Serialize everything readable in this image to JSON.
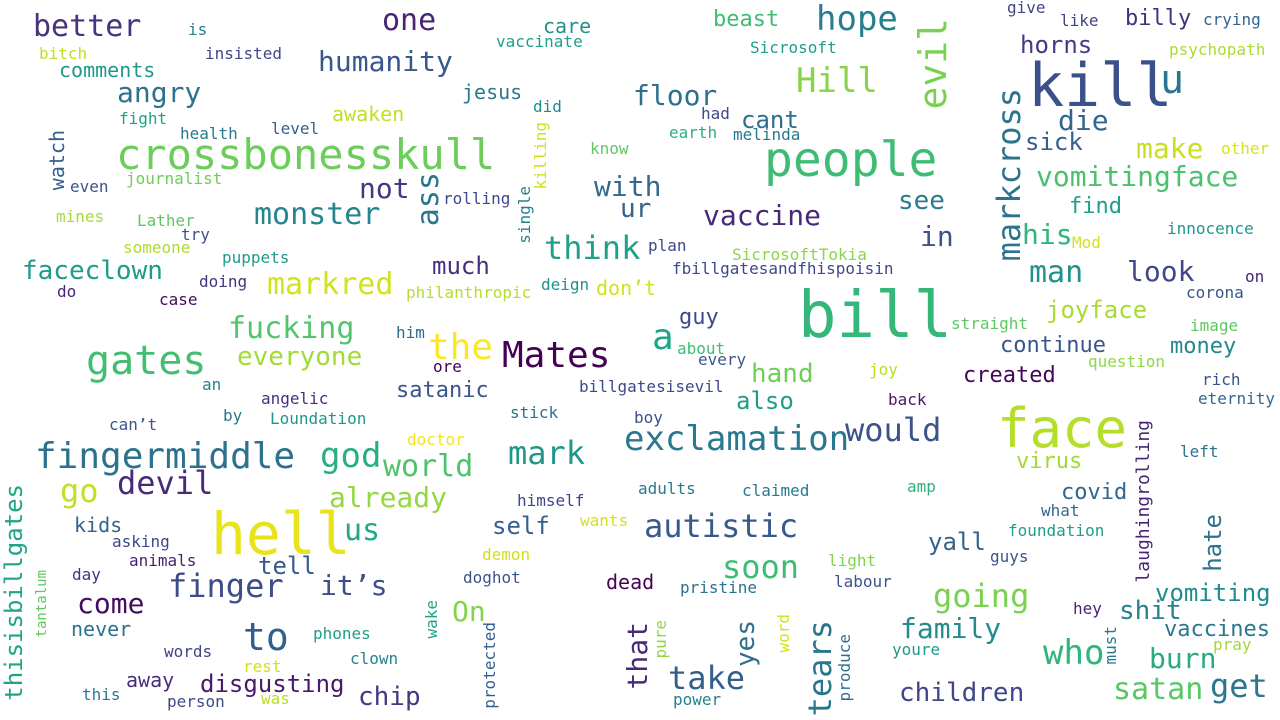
{
  "words": [
    {
      "text": "bill",
      "color": "#35b779"
    },
    {
      "text": "kill",
      "color": "#3b518b"
    },
    {
      "text": "hell",
      "color": "#e8e419"
    },
    {
      "text": "face",
      "color": "#b5de2b"
    },
    {
      "text": "crossbonesskull",
      "color": "#6ccd5a"
    },
    {
      "text": "people",
      "color": "#3fbc73"
    },
    {
      "text": "gates",
      "color": "#42be71"
    },
    {
      "text": "fingermiddle",
      "color": "#2c728e"
    },
    {
      "text": "exclamation",
      "color": "#2a788e"
    },
    {
      "text": "Mates",
      "color": "#440154"
    },
    {
      "text": "evil",
      "color": "#7ad151"
    },
    {
      "text": "markcross",
      "color": "#2c738e"
    },
    {
      "text": "hope",
      "color": "#277f8e"
    },
    {
      "text": "Hill",
      "color": "#86d549"
    },
    {
      "text": "vomitingface",
      "color": "#4ac16d"
    },
    {
      "text": "monster",
      "color": "#25858e"
    },
    {
      "text": "markred",
      "color": "#d2e21b"
    },
    {
      "text": "humanity",
      "color": "#38588c"
    },
    {
      "text": "better",
      "color": "#46327e"
    },
    {
      "text": "one",
      "color": "#482475"
    },
    {
      "text": "angry",
      "color": "#2c718e"
    },
    {
      "text": "floor",
      "color": "#2d708e"
    },
    {
      "text": "cant",
      "color": "#2e6d8e"
    },
    {
      "text": "die",
      "color": "#31678e"
    },
    {
      "text": "make",
      "color": "#c8e020"
    },
    {
      "text": "sick",
      "color": "#355f8d"
    },
    {
      "text": "u",
      "color": "#2a768e"
    },
    {
      "text": "ass",
      "color": "#2b758e"
    },
    {
      "text": "not",
      "color": "#453781"
    },
    {
      "text": "with",
      "color": "#306a8e"
    },
    {
      "text": "ur",
      "color": "#33638d"
    },
    {
      "text": "vaccine",
      "color": "#482878"
    },
    {
      "text": "see",
      "color": "#297b8e"
    },
    {
      "text": "in",
      "color": "#3b528b"
    },
    {
      "text": "think",
      "color": "#1fa088"
    },
    {
      "text": "his",
      "color": "#31b57b"
    },
    {
      "text": "man",
      "color": "#21918c"
    },
    {
      "text": "look",
      "color": "#404688"
    },
    {
      "text": "faceclown",
      "color": "#1e9b8a"
    },
    {
      "text": "much",
      "color": "#472f7d"
    },
    {
      "text": "fucking",
      "color": "#52c569"
    },
    {
      "text": "the",
      "color": "#fde725"
    },
    {
      "text": "a",
      "color": "#20a486"
    },
    {
      "text": "guy",
      "color": "#3e4989"
    },
    {
      "text": "joyface",
      "color": "#a8db34"
    },
    {
      "text": "everyone",
      "color": "#a2da37"
    },
    {
      "text": "continue",
      "color": "#39558c"
    },
    {
      "text": "money",
      "color": "#24878e"
    },
    {
      "text": "created",
      "color": "#450559"
    },
    {
      "text": "hand",
      "color": "#6ece58"
    },
    {
      "text": "also",
      "color": "#1e9c89"
    },
    {
      "text": "satanic",
      "color": "#3a548c"
    },
    {
      "text": "would",
      "color": "#3b528b"
    },
    {
      "text": "god",
      "color": "#29af7f"
    },
    {
      "text": "world",
      "color": "#4ec36b"
    },
    {
      "text": "mark",
      "color": "#1f978b"
    },
    {
      "text": "devil",
      "color": "#472a7a"
    },
    {
      "text": "go",
      "color": "#c2df23"
    },
    {
      "text": "already",
      "color": "#93d741"
    },
    {
      "text": "autistic",
      "color": "#38598c"
    },
    {
      "text": "virus",
      "color": "#a0da39"
    },
    {
      "text": "covid",
      "color": "#31668e"
    },
    {
      "text": "us",
      "color": "#22a884"
    },
    {
      "text": "self",
      "color": "#34618d"
    },
    {
      "text": "yall",
      "color": "#33638d"
    },
    {
      "text": "finger",
      "color": "#3d4d8a"
    },
    {
      "text": "it’s",
      "color": "#3d4e8a"
    },
    {
      "text": "soon",
      "color": "#3dbc74"
    },
    {
      "text": "going",
      "color": "#7ad151"
    },
    {
      "text": "tell",
      "color": "#375a8c"
    },
    {
      "text": "come",
      "color": "#460b5e"
    },
    {
      "text": "to",
      "color": "#345e8d"
    },
    {
      "text": "On",
      "color": "#84d44b"
    },
    {
      "text": "family",
      "color": "#228c8d"
    },
    {
      "text": "who",
      "color": "#2fb47c"
    },
    {
      "text": "vomiting",
      "color": "#228b8d"
    },
    {
      "text": "shit",
      "color": "#26828e"
    },
    {
      "text": "vaccines",
      "color": "#2a788e"
    },
    {
      "text": "burn",
      "color": "#25ac82"
    },
    {
      "text": "take",
      "color": "#355e8d"
    },
    {
      "text": "children",
      "color": "#3f4788"
    },
    {
      "text": "satan",
      "color": "#58c765"
    },
    {
      "text": "get",
      "color": "#2a778e"
    },
    {
      "text": "disgusting",
      "color": "#481a6c"
    },
    {
      "text": "chip",
      "color": "#443983"
    },
    {
      "text": "that",
      "color": "#482878"
    },
    {
      "text": "yes",
      "color": "#2e6e8e"
    },
    {
      "text": "tears",
      "color": "#2a768e"
    },
    {
      "text": "hate",
      "color": "#2c738e"
    },
    {
      "text": "laughingrolling",
      "color": "#482475"
    },
    {
      "text": "thisisbillgates",
      "color": "#20a386"
    },
    {
      "text": "markcross",
      "color": "#2c738e"
    },
    {
      "text": "find",
      "color": "#1f9e89"
    },
    {
      "text": "horns",
      "color": "#443a83"
    },
    {
      "text": "billy",
      "color": "#46307e"
    },
    {
      "text": "beast",
      "color": "#3dbc74"
    },
    {
      "text": "care",
      "color": "#21918c"
    },
    {
      "text": "vaccinate",
      "color": "#1f9f88"
    },
    {
      "text": "jesus",
      "color": "#2a788e"
    },
    {
      "text": "awaken",
      "color": "#c0df25"
    },
    {
      "text": "comments",
      "color": "#1f988b"
    },
    {
      "text": "insisted",
      "color": "#3f4889"
    },
    {
      "text": "bitch",
      "color": "#bddf26"
    },
    {
      "text": "is",
      "color": "#26818e"
    },
    {
      "text": "Sicrosoft",
      "color": "#1f9e89"
    },
    {
      "text": "like",
      "color": "#414487"
    },
    {
      "text": "give",
      "color": "#414487"
    },
    {
      "text": "crying",
      "color": "#33638d"
    },
    {
      "text": "psychopath",
      "color": "#addc30"
    },
    {
      "text": "other",
      "color": "#d8e219"
    },
    {
      "text": "had",
      "color": "#3e4989"
    },
    {
      "text": "did",
      "color": "#23898e"
    },
    {
      "text": "earth",
      "color": "#2ab07f"
    },
    {
      "text": "melinda",
      "color": "#2a788e"
    },
    {
      "text": "know",
      "color": "#5ec962"
    },
    {
      "text": "killing",
      "color": "#d0e11c"
    },
    {
      "text": "single",
      "color": "#277f8e"
    },
    {
      "text": "rolling",
      "color": "#3e4989"
    },
    {
      "text": "fight",
      "color": "#1fa188"
    },
    {
      "text": "health",
      "color": "#2a788e"
    },
    {
      "text": "level",
      "color": "#355f8d"
    },
    {
      "text": "watch",
      "color": "#355e8d"
    },
    {
      "text": "even",
      "color": "#3a548c"
    },
    {
      "text": "journalist",
      "color": "#6ece58"
    },
    {
      "text": "mines",
      "color": "#a5db36"
    },
    {
      "text": "Lather",
      "color": "#5ec962"
    },
    {
      "text": "try",
      "color": "#3b528b"
    },
    {
      "text": "someone",
      "color": "#addc30"
    },
    {
      "text": "puppets",
      "color": "#1f9a8a"
    },
    {
      "text": "plan",
      "color": "#3e4a89"
    },
    {
      "text": "SicrosoftTokia",
      "color": "#8bd646"
    },
    {
      "text": "fbillgatesandfhispoisin",
      "color": "#3e4989"
    },
    {
      "text": "Mod",
      "color": "#d2e21b"
    },
    {
      "text": "innocence",
      "color": "#1f968b"
    },
    {
      "text": "on",
      "color": "#482475"
    },
    {
      "text": "corona",
      "color": "#39568c"
    },
    {
      "text": "doing",
      "color": "#46327e"
    },
    {
      "text": "do",
      "color": "#482475"
    },
    {
      "text": "case",
      "color": "#460b5e"
    },
    {
      "text": "philanthropic",
      "color": "#b5de2b"
    },
    {
      "text": "deign",
      "color": "#21918c"
    },
    {
      "text": "don’t",
      "color": "#d2e21b"
    },
    {
      "text": "straight",
      "color": "#5ec962"
    },
    {
      "text": "image",
      "color": "#5ec962"
    },
    {
      "text": "him",
      "color": "#31688e"
    },
    {
      "text": "ore",
      "color": "#440154"
    },
    {
      "text": "about",
      "color": "#40bd72"
    },
    {
      "text": "every",
      "color": "#39558c"
    },
    {
      "text": "joy",
      "color": "#b8de29"
    },
    {
      "text": "question",
      "color": "#8fd744"
    },
    {
      "text": "an",
      "color": "#26818e"
    },
    {
      "text": "angelic",
      "color": "#46307e"
    },
    {
      "text": "billgatesisevil",
      "color": "#3e4a89"
    },
    {
      "text": "rich",
      "color": "#3a548c"
    },
    {
      "text": "eternity",
      "color": "#31678e"
    },
    {
      "text": "back",
      "color": "#481a6c"
    },
    {
      "text": "by",
      "color": "#2a788e"
    },
    {
      "text": "Loundation",
      "color": "#1f968b"
    },
    {
      "text": "stick",
      "color": "#2c728e"
    },
    {
      "text": "boy",
      "color": "#3c4f8a"
    },
    {
      "text": "can’t",
      "color": "#3a548c"
    },
    {
      "text": "doctor",
      "color": "#f1e51d"
    },
    {
      "text": "left",
      "color": "#2c738e"
    },
    {
      "text": "amp",
      "color": "#2db27d"
    },
    {
      "text": "himself",
      "color": "#3f4788"
    },
    {
      "text": "adults",
      "color": "#2a788e"
    },
    {
      "text": "claimed",
      "color": "#29798e"
    },
    {
      "text": "what",
      "color": "#31688e"
    },
    {
      "text": "kids",
      "color": "#33638d"
    },
    {
      "text": "wants",
      "color": "#d5e21a"
    },
    {
      "text": "foundation",
      "color": "#1f9e89"
    },
    {
      "text": "asking",
      "color": "#3f4889"
    },
    {
      "text": "animals",
      "color": "#481f70"
    },
    {
      "text": "demon",
      "color": "#d0e11c"
    },
    {
      "text": "light",
      "color": "#84d44b"
    },
    {
      "text": "guys",
      "color": "#3a548c"
    },
    {
      "text": "day",
      "color": "#46327e"
    },
    {
      "text": "doghot",
      "color": "#3b528b"
    },
    {
      "text": "dead",
      "color": "#450457"
    },
    {
      "text": "pristine",
      "color": "#2c718e"
    },
    {
      "text": "labour",
      "color": "#3a548c"
    },
    {
      "text": "tantalum",
      "color": "#5ec962"
    },
    {
      "text": "never",
      "color": "#2c728e"
    },
    {
      "text": "wake",
      "color": "#20a386"
    },
    {
      "text": "protected",
      "color": "#355e8d"
    },
    {
      "text": "pure",
      "color": "#90d743"
    },
    {
      "text": "word",
      "color": "#d5e21a"
    },
    {
      "text": "produce",
      "color": "#2c728e"
    },
    {
      "text": "must",
      "color": "#2a788e"
    },
    {
      "text": "hey",
      "color": "#481f70"
    },
    {
      "text": "pray",
      "color": "#a0da39"
    },
    {
      "text": "youre",
      "color": "#1f988b"
    },
    {
      "text": "phones",
      "color": "#1f9e89"
    },
    {
      "text": "words",
      "color": "#414487"
    },
    {
      "text": "rest",
      "color": "#d0e11c"
    },
    {
      "text": "clown",
      "color": "#26828e"
    },
    {
      "text": "away",
      "color": "#472d7b"
    },
    {
      "text": "this",
      "color": "#2a788e"
    },
    {
      "text": "person",
      "color": "#3e4a89"
    },
    {
      "text": "was",
      "color": "#b8de29"
    },
    {
      "text": "power",
      "color": "#26818e"
    }
  ]
}
